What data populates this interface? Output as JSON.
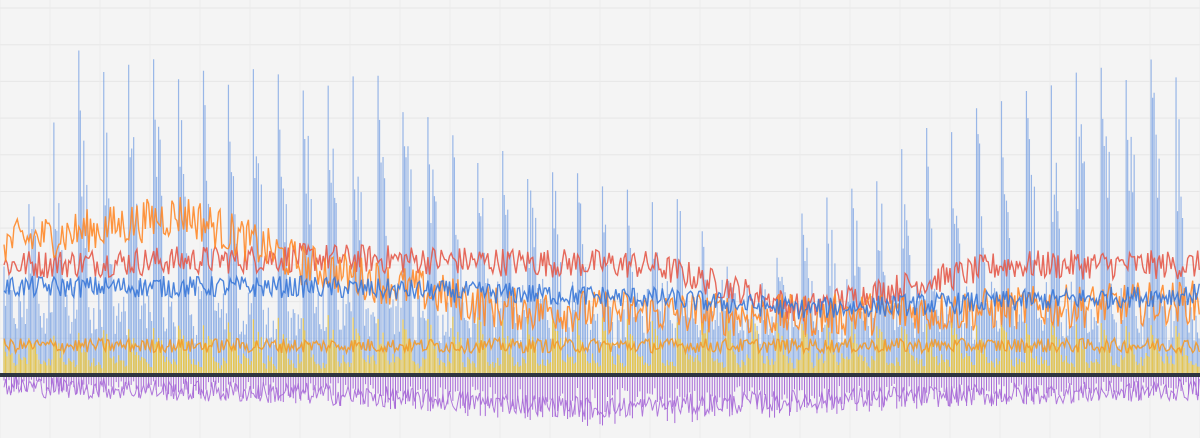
{
  "chart_data": {
    "type": "line",
    "title": "",
    "xlabel": "",
    "ylabel": "",
    "legend": "none",
    "grid": true,
    "ylim": [
      -15,
      100
    ],
    "n_points": 240,
    "background": "#f4f4f4",
    "baseline_color": "#2f3540",
    "series": [
      {
        "kind": "spike",
        "color": "#7aa2e3",
        "period": 5,
        "envelope": [
          [
            0,
            30
          ],
          [
            15,
            88
          ],
          [
            75,
            80
          ],
          [
            95,
            62
          ],
          [
            115,
            54
          ],
          [
            135,
            48
          ],
          [
            150,
            22
          ],
          [
            160,
            44
          ],
          [
            185,
            66
          ],
          [
            215,
            82
          ],
          [
            235,
            86
          ],
          [
            240,
            40
          ]
        ],
        "floor": 22
      },
      {
        "kind": "band",
        "color": "#e45a4a",
        "envelope": [
          [
            0,
            30
          ],
          [
            60,
            32
          ],
          [
            130,
            30
          ],
          [
            160,
            18
          ],
          [
            200,
            30
          ],
          [
            240,
            30
          ]
        ],
        "noise": 4
      },
      {
        "kind": "band",
        "color": "#ff8a2a",
        "envelope": [
          [
            0,
            36
          ],
          [
            20,
            40
          ],
          [
            36,
            44
          ],
          [
            60,
            30
          ],
          [
            100,
            18
          ],
          [
            160,
            16
          ],
          [
            240,
            20
          ]
        ],
        "noise": 6
      },
      {
        "kind": "band",
        "color": "#3a78d8",
        "envelope": [
          [
            0,
            24
          ],
          [
            60,
            24
          ],
          [
            130,
            21
          ],
          [
            160,
            18
          ],
          [
            240,
            22
          ]
        ],
        "noise": 3
      },
      {
        "kind": "spike",
        "color": "#f2c93a",
        "period": 5,
        "envelope": [
          [
            0,
            10
          ],
          [
            60,
            16
          ],
          [
            120,
            16
          ],
          [
            180,
            14
          ],
          [
            240,
            14
          ]
        ],
        "floor": 5
      },
      {
        "kind": "band",
        "color": "#f29a2a",
        "envelope": [
          [
            0,
            8
          ],
          [
            240,
            8
          ]
        ],
        "noise": 2
      },
      {
        "kind": "neg",
        "color": "#a86ad8",
        "envelope": [
          [
            0,
            -3
          ],
          [
            60,
            -5
          ],
          [
            120,
            -9
          ],
          [
            180,
            -6
          ],
          [
            240,
            -4
          ]
        ],
        "noise": 3
      }
    ]
  }
}
